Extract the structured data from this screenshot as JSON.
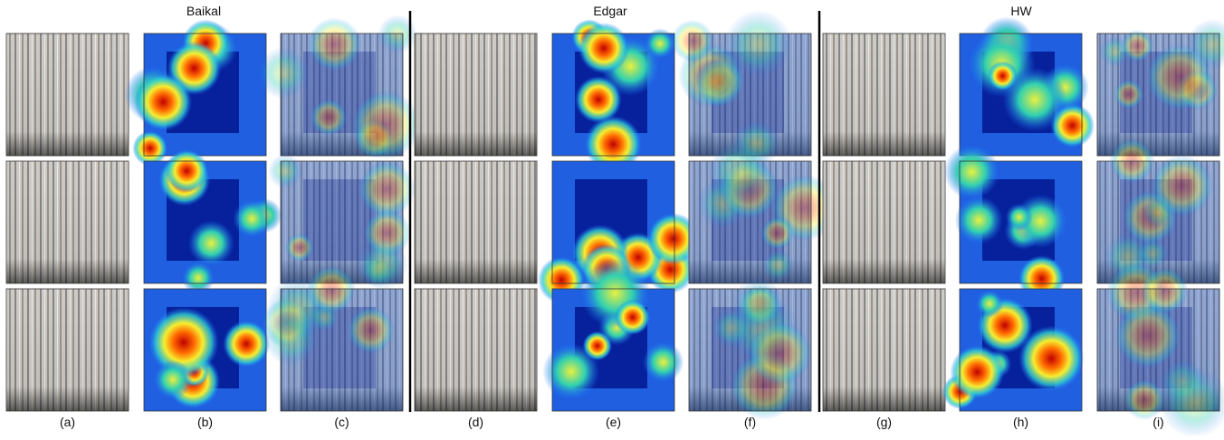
{
  "groups": [
    {
      "title": "Baikal"
    },
    {
      "title": "Edgar"
    },
    {
      "title": "HW"
    }
  ],
  "columns": [
    "(a)",
    "(b)",
    "(c)",
    "(d)",
    "(e)",
    "(f)",
    "(g)",
    "(h)",
    "(i)"
  ]
}
